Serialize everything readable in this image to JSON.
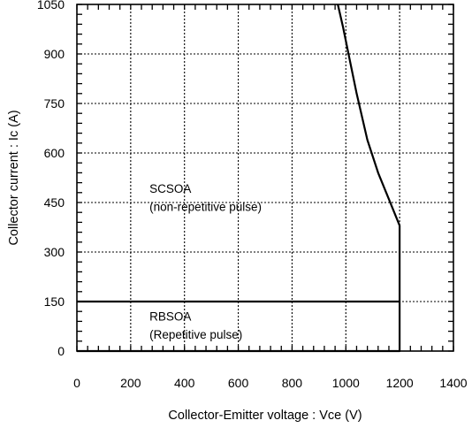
{
  "chart_data": {
    "type": "line",
    "title": "",
    "xlabel": "Collector-Emitter voltage : Vce (V)",
    "ylabel": "Collector current : Ic (A)",
    "xlim": [
      0,
      1400
    ],
    "ylim": [
      0,
      1050
    ],
    "x_ticks": [
      0,
      200,
      400,
      600,
      800,
      1000,
      1200,
      1400
    ],
    "y_ticks": [
      0,
      150,
      300,
      450,
      600,
      750,
      900,
      1050
    ],
    "x_tick_labels": [
      "0",
      "200",
      "400",
      "600",
      "800",
      "1000",
      "1200",
      "1400"
    ],
    "y_tick_labels": [
      "0",
      "150",
      "300",
      "450",
      "600",
      "750",
      "900",
      "1050"
    ],
    "grid": true,
    "minor_ticks_per_major": 5,
    "series": [
      {
        "name": "SCSOA",
        "x": [
          0,
          1200,
          1200,
          1190,
          1160,
          1120,
          1080,
          1040,
          1010,
          990,
          970
        ],
        "y": [
          0,
          0,
          380,
          400,
          460,
          540,
          640,
          780,
          900,
          980,
          1050
        ]
      },
      {
        "name": "RBSOA",
        "x": [
          0,
          1200
        ],
        "y": [
          150,
          150
        ]
      }
    ],
    "annotations": [
      {
        "text": "SCSOA",
        "x": 270,
        "y": 480
      },
      {
        "text": "(non-repetitive pulse)",
        "x": 270,
        "y": 425
      },
      {
        "text": "RBSOA",
        "x": 270,
        "y": 93
      },
      {
        "text": "(Repetitive pulse)",
        "x": 270,
        "y": 37
      }
    ]
  }
}
